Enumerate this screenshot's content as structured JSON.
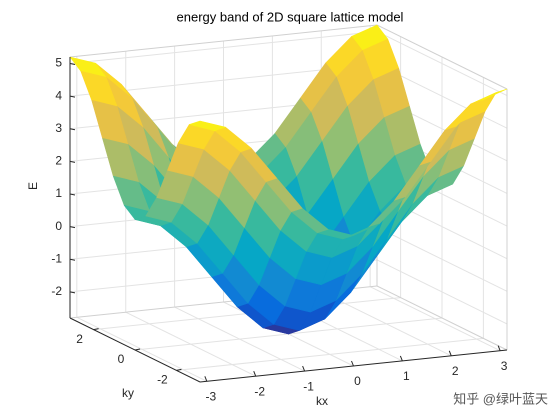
{
  "chart_data": {
    "type": "surface",
    "title": "energy band of 2D square lattice model",
    "xlabel": "kx",
    "ylabel": "ky",
    "zlabel": "E",
    "x": [
      -3.14,
      -2.62,
      -2.09,
      -1.57,
      -1.05,
      -0.52,
      0,
      0.52,
      1.05,
      1.57,
      2.09,
      2.62,
      3.14
    ],
    "y": [
      -3.14,
      -2.62,
      -2.09,
      -1.57,
      -1.05,
      -0.52,
      0,
      0.52,
      1.05,
      1.57,
      2.09,
      2.62,
      3.14
    ],
    "z": [
      [
        5.2,
        4.93,
        4.2,
        3.2,
        2.2,
        1.47,
        1.2,
        1.47,
        2.2,
        3.2,
        4.2,
        4.93,
        5.2
      ],
      [
        4.93,
        4.66,
        3.93,
        2.93,
        1.93,
        1.2,
        0.93,
        1.2,
        1.93,
        2.93,
        3.93,
        4.66,
        4.93
      ],
      [
        4.2,
        3.93,
        3.2,
        2.2,
        1.2,
        0.47,
        0.2,
        0.47,
        1.2,
        2.2,
        3.2,
        3.93,
        4.2
      ],
      [
        3.2,
        2.93,
        2.2,
        1.2,
        0.2,
        -0.53,
        -0.8,
        -0.53,
        0.2,
        1.2,
        2.2,
        2.93,
        3.2
      ],
      [
        2.2,
        1.93,
        1.2,
        0.2,
        -0.8,
        -1.53,
        -1.8,
        -1.53,
        -0.8,
        0.2,
        1.2,
        1.93,
        2.2
      ],
      [
        1.47,
        1.2,
        0.47,
        -0.53,
        -1.53,
        -2.26,
        -2.53,
        -2.26,
        -1.53,
        -0.53,
        0.47,
        1.2,
        1.47
      ],
      [
        1.2,
        0.93,
        0.2,
        -0.8,
        -1.8,
        -2.53,
        -2.8,
        -2.53,
        -1.8,
        -0.8,
        0.2,
        0.93,
        1.2
      ],
      [
        1.47,
        1.2,
        0.47,
        -0.53,
        -1.53,
        -2.26,
        -2.53,
        -2.26,
        -1.53,
        -0.53,
        0.47,
        1.2,
        1.47
      ],
      [
        2.2,
        1.93,
        1.2,
        0.2,
        -0.8,
        -1.53,
        -1.8,
        -1.53,
        -0.8,
        0.2,
        1.2,
        1.93,
        2.2
      ],
      [
        3.2,
        2.93,
        2.2,
        1.2,
        0.2,
        -0.53,
        -0.8,
        -0.53,
        0.2,
        1.2,
        2.2,
        2.93,
        3.2
      ],
      [
        4.2,
        3.93,
        3.2,
        2.2,
        1.2,
        0.47,
        0.2,
        0.47,
        1.2,
        2.2,
        3.2,
        3.93,
        4.2
      ],
      [
        4.93,
        4.66,
        3.93,
        2.93,
        1.93,
        1.2,
        0.93,
        1.2,
        1.93,
        2.93,
        3.93,
        4.66,
        4.93
      ],
      [
        5.2,
        4.93,
        4.2,
        3.2,
        2.2,
        1.47,
        1.2,
        1.47,
        2.2,
        3.2,
        4.2,
        4.93,
        5.2
      ]
    ],
    "xlim": [
      -3.14,
      3.14
    ],
    "ylim": [
      -3.14,
      3.14
    ],
    "zlim": [
      -2.8,
      5.2
    ],
    "xticks": [
      -3,
      -2,
      -1,
      0,
      1,
      2,
      3
    ],
    "yticks": [
      -2,
      0,
      2
    ],
    "zticks": [
      -2,
      -1,
      0,
      1,
      2,
      3,
      4,
      5
    ],
    "grid": true,
    "colormap": [
      "#352a87",
      "#0363e1",
      "#1485d4",
      "#06a7c6",
      "#38b99e",
      "#92bf73",
      "#d9ba56",
      "#fcce2e",
      "#f9fb0e"
    ],
    "watermark": "知乎 @绿叶蓝天"
  }
}
